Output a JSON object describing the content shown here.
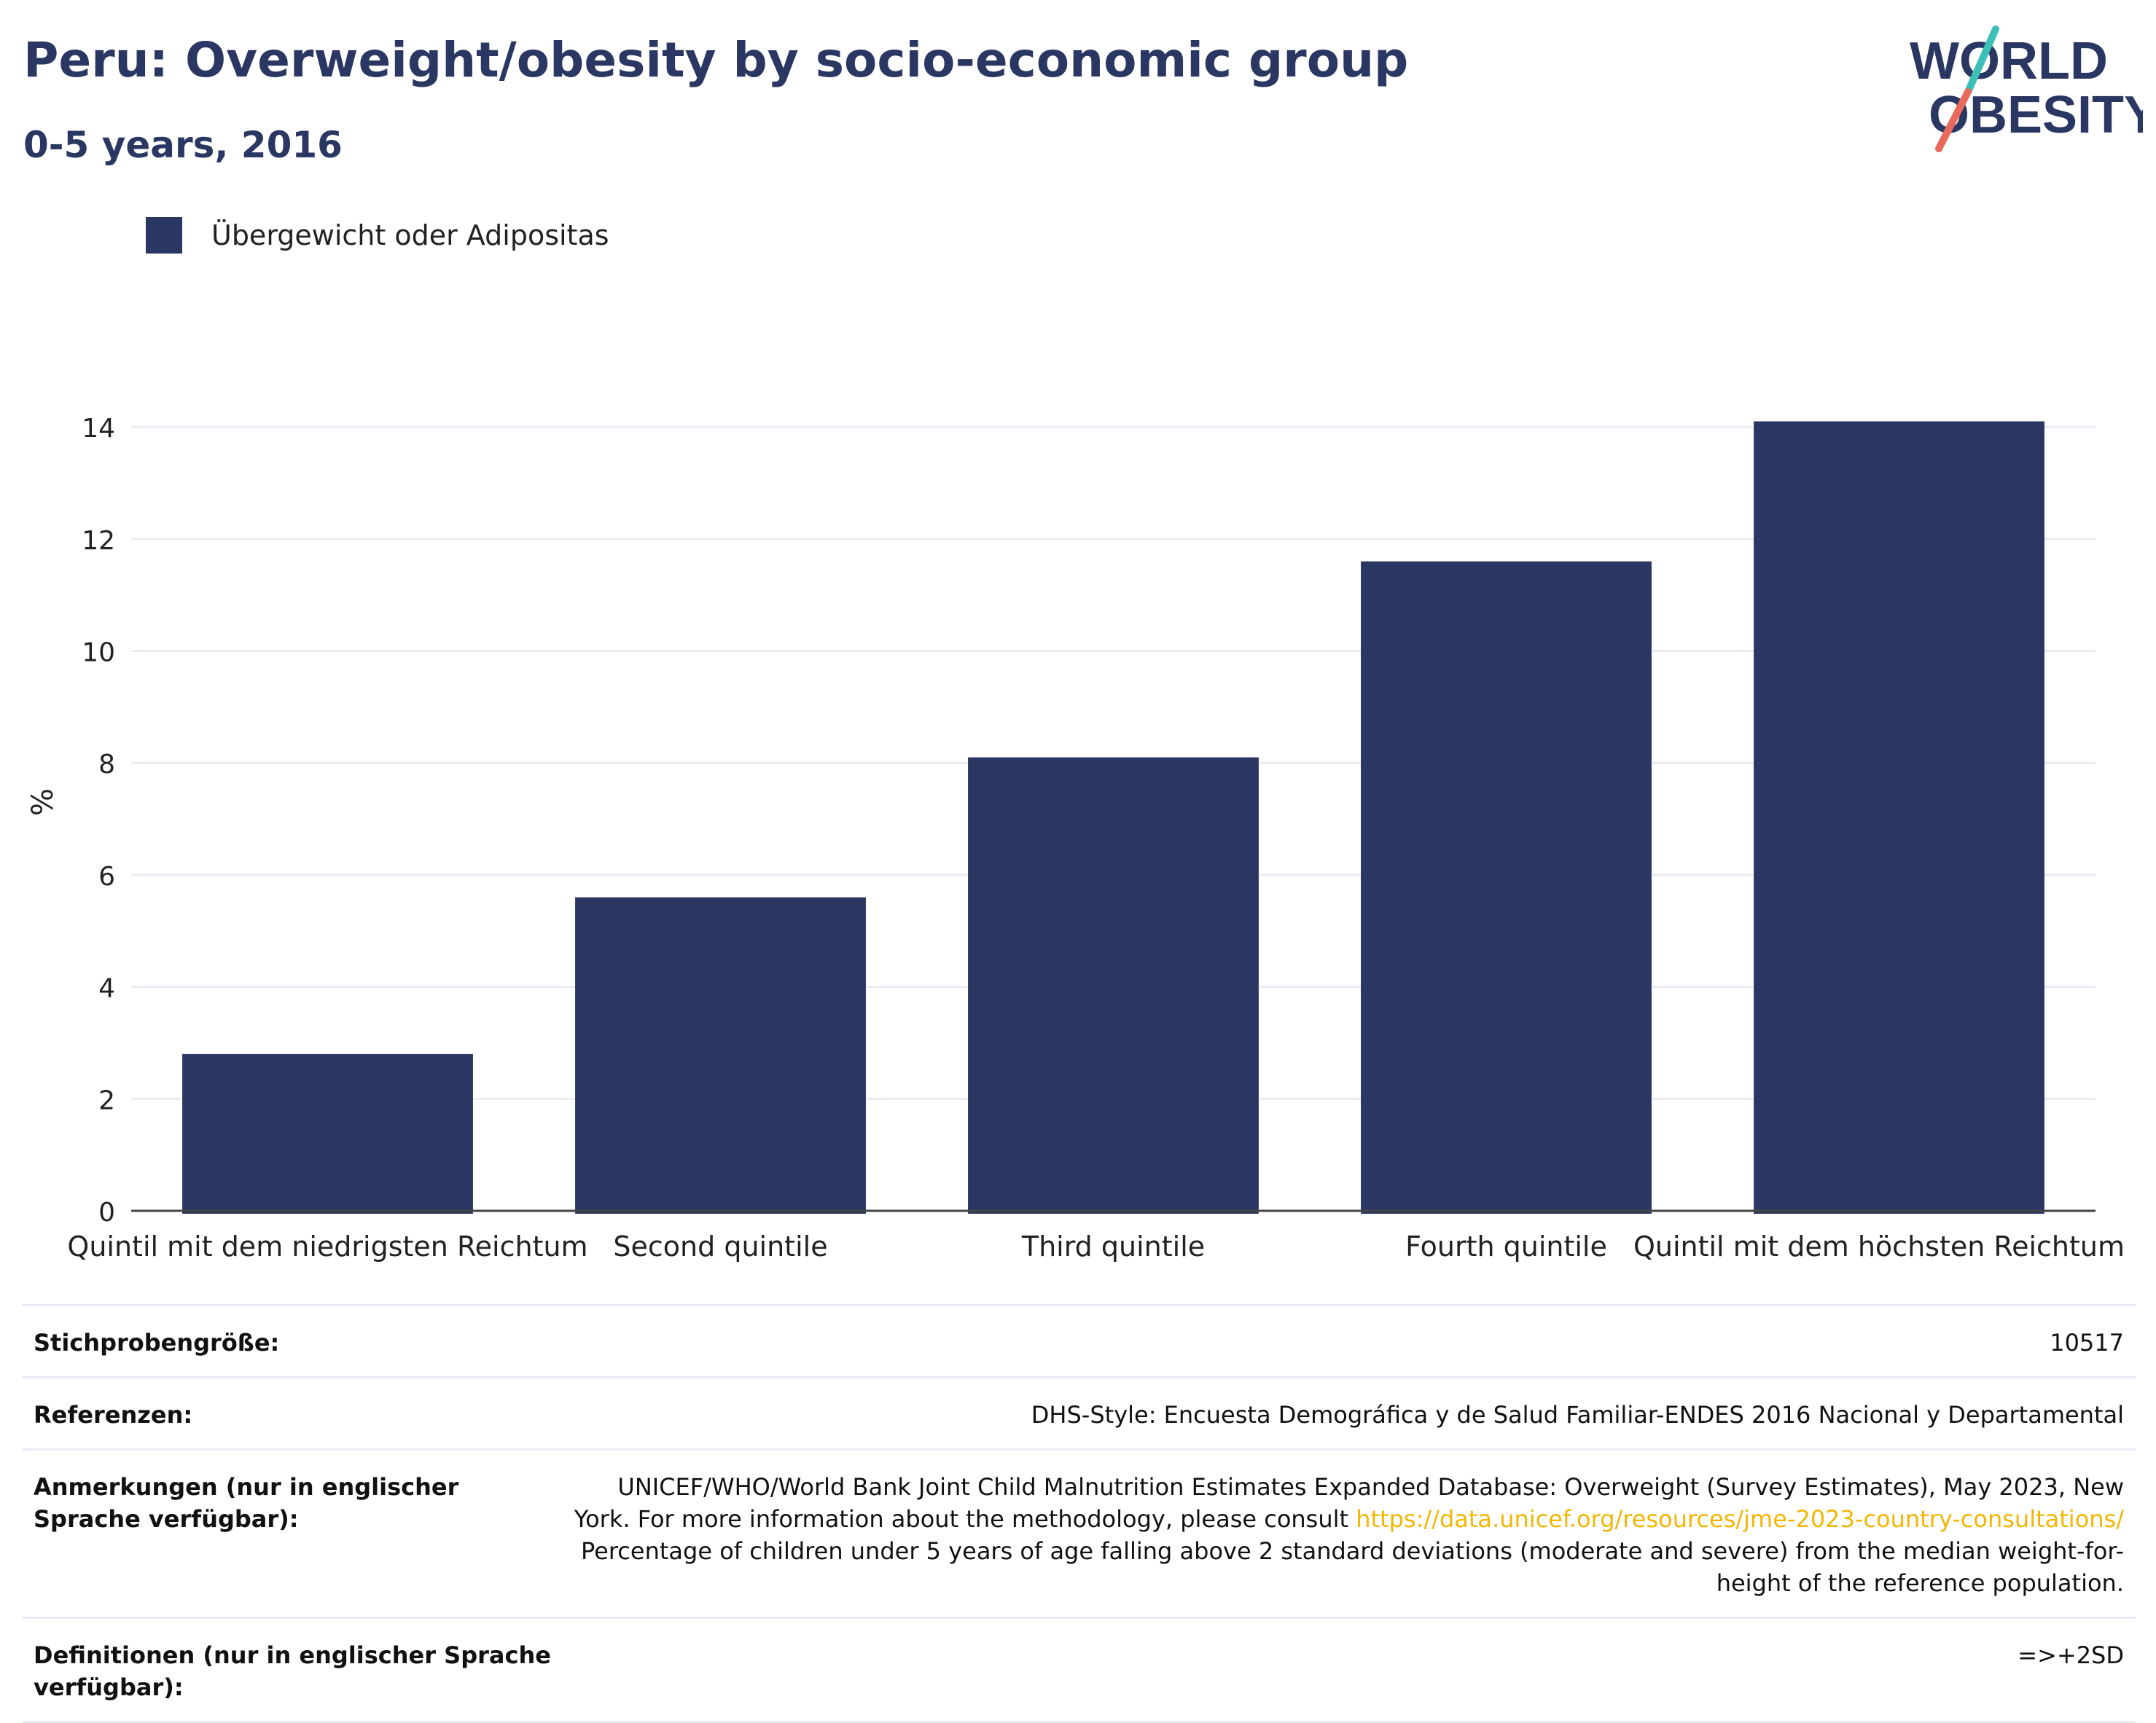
{
  "header": {
    "title": "Peru: Overweight/obesity by socio-economic group",
    "subtitle": "0-5 years, 2016"
  },
  "logo": {
    "line1": "WORLD",
    "line2": "OBESITY",
    "colors": {
      "text": "#2b3763",
      "slash_teal": "#3bbfb8",
      "slash_coral": "#e86a5a"
    }
  },
  "colors": {
    "bar": "#2b3763",
    "grid": "#e9ecf4",
    "axis": "#444444"
  },
  "chart_data": {
    "type": "bar",
    "categories": [
      "Quintil mit dem niedrigsten Reichtum",
      "Second quintile",
      "Third quintile",
      "Fourth quintile",
      "Quintil mit dem höchsten Reichtum"
    ],
    "series": [
      {
        "name": "Übergewicht oder Adipositas",
        "values": [
          2.8,
          5.6,
          8.1,
          11.6,
          14.1
        ]
      }
    ],
    "ylabel": "%",
    "ylim": [
      0,
      14.6
    ],
    "yticks": [
      0,
      2,
      4,
      6,
      8,
      10,
      12,
      14
    ],
    "grid": true,
    "legend_position": "top-left"
  },
  "table": {
    "sample_size": {
      "label": "Stichprobengröße:",
      "value": "10517"
    },
    "references": {
      "label": "Referenzen:",
      "value": "DHS-Style: Encuesta Demográfica y de Salud Familiar-ENDES 2016 Nacional y Departamental"
    },
    "notes": {
      "label": "Anmerkungen (nur in englischer Sprache verfügbar):",
      "line1": "UNICEF/WHO/World Bank Joint Child Malnutrition Estimates Expanded Database: Overweight (Survey Estimates), May 2023, New",
      "line2_prefix": "York. For more information about the methodology, please consult ",
      "link": "https://data.unicef.org/resources/jme-2023-country-consultations/",
      "line3": "Percentage of children under 5 years of age falling above 2 standard deviations (moderate and severe) from the median weight-for-",
      "line4": "height of the reference population."
    },
    "definitions": {
      "label": "Definitionen (nur in englischer Sprache verfügbar):",
      "value": "=>+2SD"
    }
  }
}
